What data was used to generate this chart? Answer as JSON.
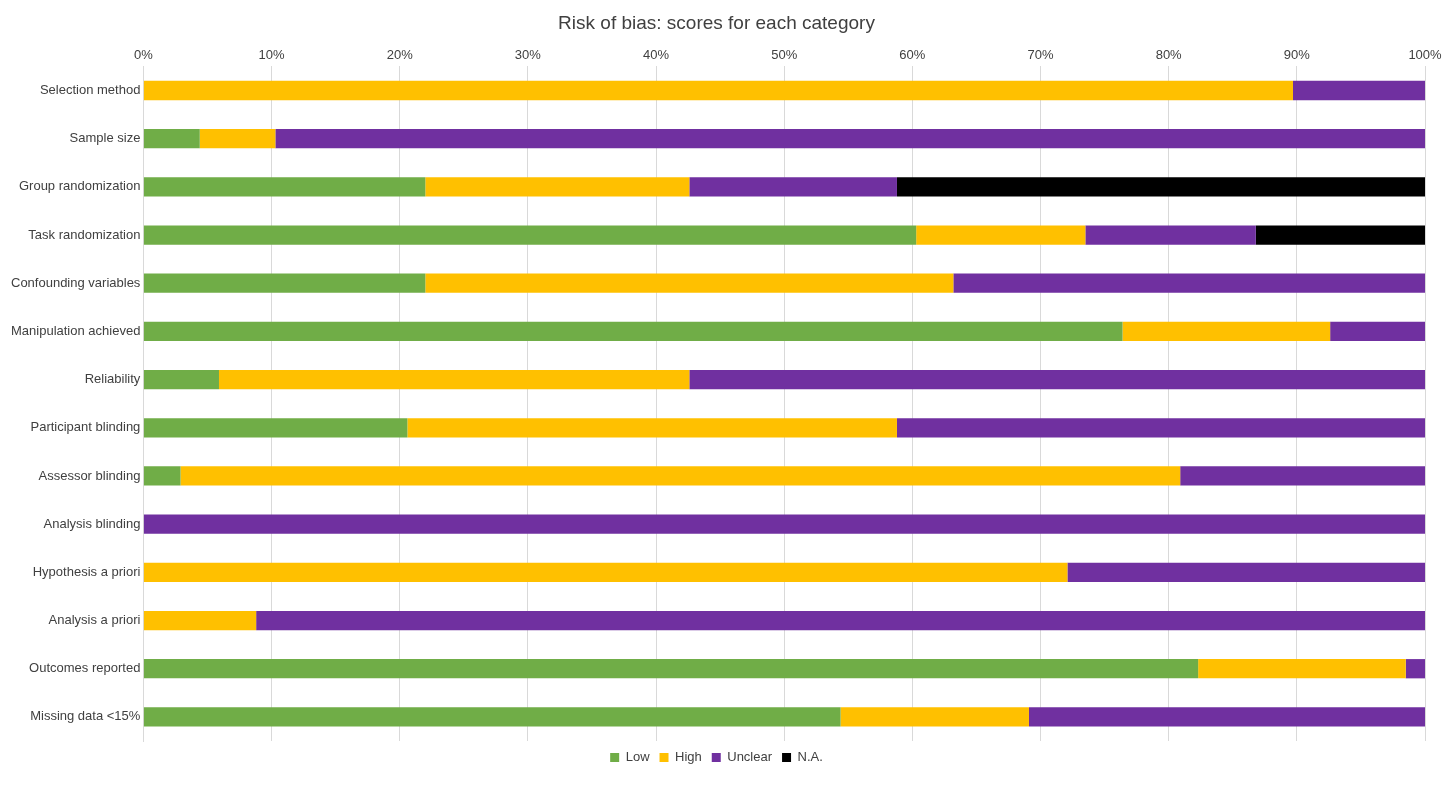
{
  "chart_data": {
    "type": "bar",
    "orientation": "horizontal",
    "stacked": true,
    "title": "Risk of bias: scores for each category",
    "categories": [
      "Selection method",
      "Sample size",
      "Group randomization",
      "Task randomization",
      "Confounding variables",
      "Manipulation achieved",
      "Reliability",
      "Participant blinding",
      "Assessor blinding",
      "Analysis blinding",
      "Hypothesis a priori",
      "Analysis a priori",
      "Outcomes reported",
      "Missing data <15%"
    ],
    "series": [
      {
        "name": "Low",
        "color": "#70ad47",
        "values": [
          0,
          4.4,
          22.0,
          60.3,
          22.0,
          76.4,
          5.9,
          20.6,
          2.9,
          0,
          0,
          0,
          82.3,
          54.4
        ]
      },
      {
        "name": "High",
        "color": "#ffc000",
        "values": [
          89.7,
          5.9,
          20.6,
          13.2,
          41.2,
          16.2,
          36.7,
          38.2,
          78.0,
          0,
          72.1,
          8.8,
          16.2,
          14.7
        ]
      },
      {
        "name": "Unclear",
        "color": "#7030a0",
        "values": [
          10.3,
          89.7,
          16.2,
          13.3,
          36.8,
          7.4,
          57.4,
          41.2,
          19.1,
          100,
          27.9,
          91.2,
          1.5,
          30.9
        ]
      },
      {
        "name": "N.A.",
        "color": "#000000",
        "values": [
          0,
          0,
          41.2,
          13.2,
          0,
          0,
          0,
          0,
          0,
          0,
          0,
          0,
          0,
          0
        ]
      }
    ],
    "xlim": [
      0,
      100
    ],
    "xticks": [
      {
        "value": 0,
        "label": "0%"
      },
      {
        "value": 10,
        "label": "10%"
      },
      {
        "value": 20,
        "label": "20%"
      },
      {
        "value": 30,
        "label": "30%"
      },
      {
        "value": 40,
        "label": "40%"
      },
      {
        "value": 50,
        "label": "50%"
      },
      {
        "value": 60,
        "label": "60%"
      },
      {
        "value": 70,
        "label": "70%"
      },
      {
        "value": 80,
        "label": "80%"
      },
      {
        "value": 90,
        "label": "90%"
      },
      {
        "value": 100,
        "label": "100%"
      }
    ],
    "grid": "x",
    "legend": "bottom"
  }
}
